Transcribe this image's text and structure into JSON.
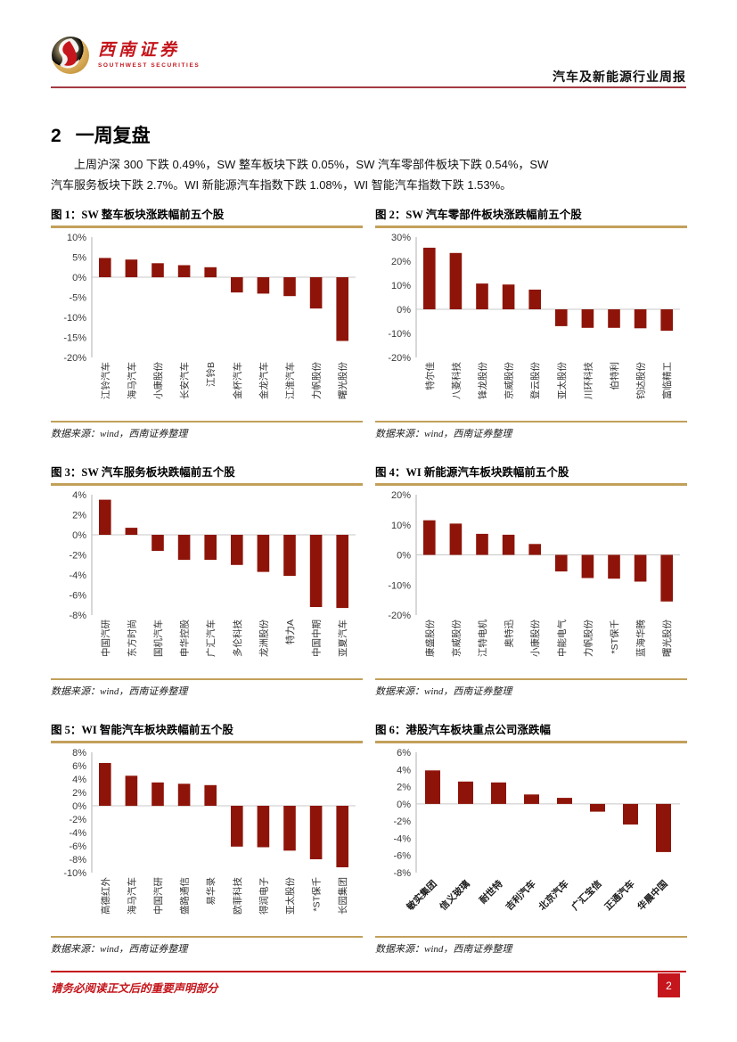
{
  "header": {
    "logo_cn": "西南证券",
    "logo_en": "SOUTHWEST SECURITIES",
    "report_title": "汽车及新能源行业周报"
  },
  "section": {
    "number": "2",
    "title": "一周复盘",
    "paragraph": "上周沪深 300 下跌 0.49%，SW 整车板块下跌 0.05%，SW 汽车零部件板块下跌 0.54%，SW 汽车服务板块下跌 2.7%。WI 新能源汽车指数下跌 1.08%，WI 智能汽车指数下跌 1.53%。"
  },
  "chart_data": [
    {
      "type": "bar",
      "title": "图 1：SW 整车板块涨跌幅前五个股",
      "source": "数据来源：wind，西南证券整理",
      "categories": [
        "江铃汽车",
        "海马汽车",
        "小康股份",
        "长安汽车",
        "江铃B",
        "金杯汽车",
        "金龙汽车",
        "江淮汽车",
        "力帆股份",
        "曙光股份"
      ],
      "values": [
        4.8,
        4.4,
        3.5,
        3.0,
        2.5,
        -3.8,
        -4.1,
        -4.7,
        -7.8,
        -15.9
      ],
      "ylim": [
        -20,
        10
      ],
      "ytick_step": 5,
      "label_rotation": 90,
      "bar_color": "#8E1409",
      "legend": "none",
      "grid": "zero-line-only"
    },
    {
      "type": "bar",
      "title": "图 2：SW 汽车零部件板块涨跌幅前五个股",
      "source": "数据来源：wind，西南证券整理",
      "categories": [
        "特尔佳",
        "八菱科技",
        "锋龙股份",
        "京威股份",
        "登云股份",
        "亚太股份",
        "川环科技",
        "伯特利",
        "钧达股份",
        "富临精工"
      ],
      "values": [
        25.6,
        23.4,
        10.7,
        10.3,
        8.2,
        -7.0,
        -7.7,
        -7.7,
        -7.9,
        -8.9
      ],
      "ylim": [
        -20,
        30
      ],
      "ytick_step": 10,
      "label_rotation": 90,
      "bar_color": "#8E1409",
      "legend": "none",
      "grid": "zero-line-only"
    },
    {
      "type": "bar",
      "title": "图 3：SW 汽车服务板块跌幅前五个股",
      "source": "数据来源：wind，西南证券整理",
      "categories": [
        "中国汽研",
        "东方时尚",
        "国机汽车",
        "申华控股",
        "广汇汽车",
        "多伦科技",
        "龙洲股份",
        "特力A",
        "中国中期",
        "亚夏汽车"
      ],
      "values": [
        3.5,
        0.7,
        -1.6,
        -2.5,
        -2.5,
        -3.0,
        -3.7,
        -4.1,
        -7.2,
        -7.3
      ],
      "ylim": [
        -8,
        4
      ],
      "ytick_step": 2,
      "label_rotation": 90,
      "bar_color": "#8E1409",
      "legend": "none",
      "grid": "zero-line-only"
    },
    {
      "type": "bar",
      "title": "图 4：WI 新能源汽车板块跌幅前五个股",
      "source": "数据来源：wind，西南证券整理",
      "categories": [
        "康盛股份",
        "京威股份",
        "江特电机",
        "奥特迅",
        "小康股份",
        "中能电气",
        "力帆股份",
        "*ST保千",
        "蓝海华腾",
        "曙光股份"
      ],
      "values": [
        11.5,
        10.4,
        7.0,
        6.7,
        3.6,
        -5.5,
        -7.7,
        -7.9,
        -8.9,
        -15.5
      ],
      "ylim": [
        -20,
        20
      ],
      "ytick_step": 10,
      "label_rotation": 90,
      "bar_color": "#8E1409",
      "legend": "none",
      "grid": "zero-line-only"
    },
    {
      "type": "bar",
      "title": "图 5：WI 智能汽车板块跌幅前五个股",
      "source": "数据来源：wind，西南证券整理",
      "categories": [
        "高德红外",
        "海马汽车",
        "中国汽研",
        "盛路通信",
        "易华录",
        "欧菲科技",
        "得润电子",
        "亚太股份",
        "*ST保千",
        "长园集团"
      ],
      "values": [
        6.4,
        4.5,
        3.5,
        3.3,
        3.1,
        -6.1,
        -6.2,
        -6.7,
        -8.0,
        -9.2
      ],
      "ylim": [
        -10,
        8
      ],
      "ytick_step": 2,
      "label_rotation": 90,
      "bar_color": "#8E1409",
      "legend": "none",
      "grid": "zero-line-only"
    },
    {
      "type": "bar",
      "title": "图 6：港股汽车板块重点公司涨跌幅",
      "source": "数据来源：wind，西南证券整理",
      "categories": [
        "敏实集团",
        "信义玻璃",
        "耐世特",
        "吉利汽车",
        "北京汽车",
        "广汇宝信",
        "正通汽车",
        "华晨中国"
      ],
      "values": [
        3.9,
        2.6,
        2.5,
        1.1,
        0.7,
        -0.9,
        -2.4,
        -5.6
      ],
      "ylim": [
        -8,
        6
      ],
      "ytick_step": 2,
      "label_rotation": 45,
      "bar_color": "#8E1409",
      "legend": "none",
      "grid": "zero-line-only"
    }
  ],
  "footer": {
    "disclaimer": "请务必阅读正文后的重要声明部分",
    "page_number": "2"
  },
  "colors": {
    "bar": "#8E1409",
    "gold_rule": "#C2A05A",
    "header_rule": "#A43A42",
    "footer_red": "#C4161C"
  }
}
